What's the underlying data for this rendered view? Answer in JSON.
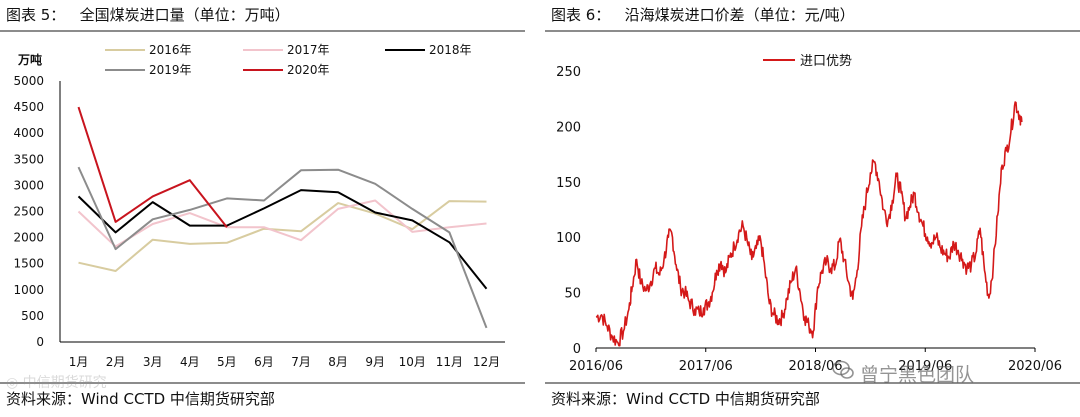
{
  "left": {
    "title": "图表 5：   全国煤炭进口量（单位：万吨）",
    "source": "资料来源：Wind CCTD 中信期货研究部",
    "unit": "万吨",
    "chart_data": {
      "type": "line",
      "title": "全国煤炭进口量（单位：万吨）",
      "ylabel": "万吨",
      "ylim": [
        0,
        5000
      ],
      "yticks": [
        "0",
        "500",
        "1000",
        "1500",
        "2000",
        "2500",
        "3000",
        "3500",
        "4000",
        "4500",
        "5000"
      ],
      "categories": [
        "1月",
        "2月",
        "3月",
        "4月",
        "5月",
        "6月",
        "7月",
        "8月",
        "9月",
        "10月",
        "11月",
        "12月"
      ],
      "legend_position": "top",
      "series": [
        {
          "name": "2016年",
          "color": "#d8cca0",
          "width": 2,
          "values": [
            1520,
            1360,
            1960,
            1880,
            1900,
            2170,
            2120,
            2660,
            2460,
            2160,
            2700,
            2690
          ]
        },
        {
          "name": "2017年",
          "color": "#f2c4cc",
          "width": 2,
          "values": [
            2500,
            1830,
            2260,
            2470,
            2200,
            2200,
            1950,
            2550,
            2710,
            2110,
            2200,
            2270
          ]
        },
        {
          "name": "2018年",
          "color": "#000000",
          "width": 2,
          "values": [
            2790,
            2100,
            2680,
            2230,
            2230,
            2560,
            2910,
            2870,
            2480,
            2330,
            1910,
            1020
          ]
        },
        {
          "name": "2019年",
          "color": "#8c8c8c",
          "width": 2,
          "values": [
            3350,
            1780,
            2350,
            2530,
            2750,
            2710,
            3290,
            3300,
            3030,
            2550,
            2100,
            270
          ]
        },
        {
          "name": "2020年",
          "color": "#c8141e",
          "width": 2,
          "values": [
            4500,
            2300,
            2790,
            3100,
            2200,
            null,
            null,
            null,
            null,
            null,
            null,
            null
          ]
        }
      ]
    }
  },
  "right": {
    "title": "图表 6：   沿海煤炭进口价差（单位：元/吨）",
    "source": "资料来源：Wind CCTD 中信期货研究部",
    "chart_data": {
      "type": "line",
      "title": "沿海煤炭进口价差（单位：元/吨）",
      "ylim": [
        0,
        250
      ],
      "yticks": [
        "0",
        "50",
        "100",
        "150",
        "200",
        "250"
      ],
      "xlabels": [
        "2016/06",
        "2017/06",
        "2018/06",
        "2019/06",
        "2020/06"
      ],
      "xrange": [
        2016.42,
        2020.42
      ],
      "legend_position": "top",
      "series": [
        {
          "name": "进口优势",
          "color": "#d41919",
          "points": [
            [
              2016.42,
              28
            ],
            [
              2016.47,
              30
            ],
            [
              2016.52,
              20
            ],
            [
              2016.57,
              10
            ],
            [
              2016.62,
              5
            ],
            [
              2016.67,
              15
            ],
            [
              2016.72,
              35
            ],
            [
              2016.75,
              55
            ],
            [
              2016.79,
              80
            ],
            [
              2016.83,
              58
            ],
            [
              2016.88,
              52
            ],
            [
              2016.92,
              60
            ],
            [
              2016.96,
              72
            ],
            [
              2017.0,
              66
            ],
            [
              2017.04,
              80
            ],
            [
              2017.08,
              100
            ],
            [
              2017.11,
              104
            ],
            [
              2017.15,
              75
            ],
            [
              2017.19,
              55
            ],
            [
              2017.23,
              50
            ],
            [
              2017.27,
              42
            ],
            [
              2017.32,
              35
            ],
            [
              2017.36,
              32
            ],
            [
              2017.4,
              36
            ],
            [
              2017.44,
              40
            ],
            [
              2017.48,
              50
            ],
            [
              2017.52,
              70
            ],
            [
              2017.56,
              78
            ],
            [
              2017.6,
              68
            ],
            [
              2017.64,
              82
            ],
            [
              2017.68,
              92
            ],
            [
              2017.72,
              104
            ],
            [
              2017.76,
              110
            ],
            [
              2017.8,
              95
            ],
            [
              2017.84,
              80
            ],
            [
              2017.88,
              90
            ],
            [
              2017.92,
              98
            ],
            [
              2017.96,
              70
            ],
            [
              2018.0,
              40
            ],
            [
              2018.04,
              30
            ],
            [
              2018.08,
              25
            ],
            [
              2018.12,
              28
            ],
            [
              2018.16,
              45
            ],
            [
              2018.2,
              60
            ],
            [
              2018.24,
              72
            ],
            [
              2018.28,
              50
            ],
            [
              2018.32,
              28
            ],
            [
              2018.36,
              20
            ],
            [
              2018.4,
              15
            ],
            [
              2018.44,
              55
            ],
            [
              2018.48,
              70
            ],
            [
              2018.52,
              78
            ],
            [
              2018.56,
              72
            ],
            [
              2018.6,
              74
            ],
            [
              2018.64,
              98
            ],
            [
              2018.68,
              80
            ],
            [
              2018.72,
              60
            ],
            [
              2018.76,
              44
            ],
            [
              2018.8,
              70
            ],
            [
              2018.84,
              110
            ],
            [
              2018.88,
              135
            ],
            [
              2018.92,
              158
            ],
            [
              2018.96,
              168
            ],
            [
              2019.0,
              150
            ],
            [
              2019.04,
              125
            ],
            [
              2019.08,
              115
            ],
            [
              2019.12,
              133
            ],
            [
              2019.16,
              155
            ],
            [
              2019.2,
              140
            ],
            [
              2019.24,
              118
            ],
            [
              2019.28,
              128
            ],
            [
              2019.32,
              140
            ],
            [
              2019.36,
              122
            ],
            [
              2019.4,
              110
            ],
            [
              2019.44,
              100
            ],
            [
              2019.48,
              95
            ],
            [
              2019.52,
              100
            ],
            [
              2019.56,
              90
            ],
            [
              2019.6,
              85
            ],
            [
              2019.64,
              82
            ],
            [
              2019.68,
              95
            ],
            [
              2019.72,
              88
            ],
            [
              2019.76,
              80
            ],
            [
              2019.8,
              72
            ],
            [
              2019.84,
              75
            ],
            [
              2019.88,
              85
            ],
            [
              2019.92,
              108
            ],
            [
              2019.96,
              70
            ],
            [
              2020.0,
              45
            ],
            [
              2020.04,
              75
            ],
            [
              2020.08,
              120
            ],
            [
              2020.12,
              165
            ],
            [
              2020.16,
              178
            ],
            [
              2020.2,
              195
            ],
            [
              2020.24,
              222
            ],
            [
              2020.28,
              210
            ],
            [
              2020.3,
              204
            ]
          ]
        }
      ]
    }
  },
  "watermark": "曾宁黑色团队",
  "watermark_left": "◎ 中信期货研究",
  "colors": {
    "rule": "#8c8c8c",
    "accent_red": "#d41919"
  }
}
